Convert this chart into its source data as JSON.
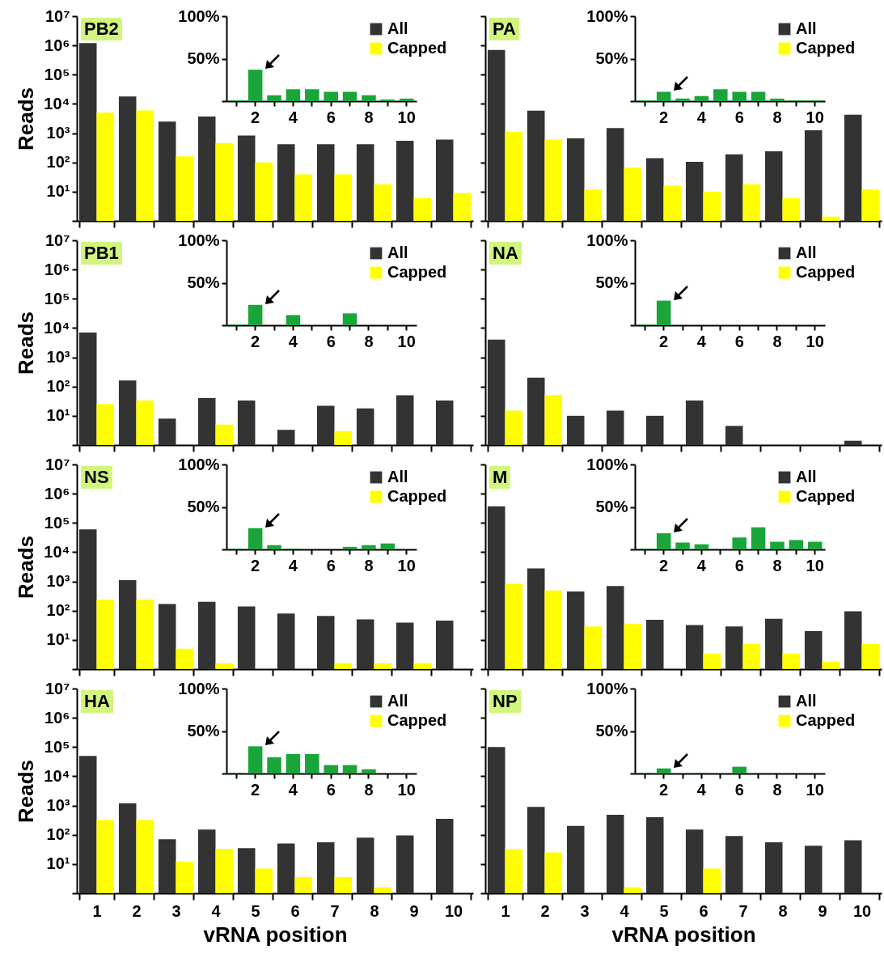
{
  "chart_data": [
    {
      "type": "bar",
      "title": "PB2",
      "ylabel": "Reads",
      "categories": [
        "1",
        "2",
        "3",
        "4",
        "5",
        "6",
        "7",
        "8",
        "9",
        "10"
      ],
      "log": true,
      "ylim": [
        1,
        10000000
      ],
      "yticks": [
        {
          "value": 1,
          "label": null
        },
        {
          "value": 10,
          "label": "10¹"
        },
        {
          "value": 100,
          "label": "10²"
        },
        {
          "value": 1000,
          "label": "10³"
        },
        {
          "value": 10000,
          "label": "10⁴"
        },
        {
          "value": 100000,
          "label": "10⁵"
        },
        {
          "value": 1000000,
          "label": "10⁶"
        },
        {
          "value": 10000000,
          "label": "10⁷"
        }
      ],
      "legend": "top right",
      "tick_labels": "y",
      "series": [
        {
          "name": "All",
          "color": "#333333",
          "values": [
            1200000,
            18000,
            2500,
            3700,
            830,
            420,
            420,
            420,
            550,
            600
          ]
        },
        {
          "name": "Capped",
          "color": "#ffff00",
          "values": [
            5000,
            6000,
            160,
            460,
            100,
            39,
            39,
            18,
            6,
            9
          ]
        }
      ]
    },
    {
      "type": "bar",
      "categories": [
        null,
        "2",
        null,
        "4",
        null,
        "6",
        null,
        "8",
        null,
        "10"
      ],
      "ylim": [
        0,
        100
      ],
      "yticks": [
        {
          "value": 0,
          "label": null
        },
        {
          "value": 50,
          "label": "50%"
        },
        {
          "value": 100,
          "label": "100%"
        }
      ],
      "series": [
        {
          "color": "#1aa53a",
          "values": [
            1,
            37,
            7,
            14,
            14,
            11,
            11,
            7,
            2,
            3
          ]
        }
      ]
    },
    {
      "type": "bar",
      "title": "PA",
      "categories": [
        "1",
        "2",
        "3",
        "4",
        "5",
        "6",
        "7",
        "8",
        "9",
        "10"
      ],
      "log": true,
      "ylim": [
        1,
        10000000
      ],
      "yticks": [
        {
          "value": 1,
          "label": null
        },
        {
          "value": 10,
          "label": null
        },
        {
          "value": 100,
          "label": null
        },
        {
          "value": 1000,
          "label": null
        },
        {
          "value": 10000,
          "label": null
        },
        {
          "value": 100000,
          "label": null
        },
        {
          "value": 1000000,
          "label": null
        },
        {
          "value": 10000000,
          "label": null
        }
      ],
      "legend": "top right",
      "tick_labels": false,
      "series": [
        {
          "name": "All",
          "color": "#333333",
          "values": [
            700000,
            5900,
            660,
            1500,
            140,
            105,
            190,
            240,
            1250,
            4300
          ]
        },
        {
          "name": "Capped",
          "color": "#ffff00",
          "values": [
            1100,
            600,
            12,
            67,
            16,
            10,
            18,
            6,
            1.4,
            12
          ]
        }
      ]
    },
    {
      "type": "bar",
      "categories": [
        null,
        "2",
        null,
        "4",
        null,
        "6",
        null,
        "8",
        null,
        "10"
      ],
      "ylim": [
        0,
        100
      ],
      "yticks": [
        {
          "value": 0,
          "label": null
        },
        {
          "value": 50,
          "label": "50%"
        },
        {
          "value": 100,
          "label": "100%"
        }
      ],
      "series": [
        {
          "color": "#1aa53a",
          "values": [
            1,
            11,
            3,
            6,
            14,
            11,
            11,
            3,
            1,
            1
          ]
        }
      ]
    },
    {
      "type": "bar",
      "title": "PB1",
      "ylabel": "Reads",
      "categories": [
        "1",
        "2",
        "3",
        "4",
        "5",
        "6",
        "7",
        "8",
        "9",
        "10"
      ],
      "log": true,
      "ylim": [
        1,
        10000000
      ],
      "yticks": [
        {
          "value": 1,
          "label": null
        },
        {
          "value": 10,
          "label": "10¹"
        },
        {
          "value": 100,
          "label": "10²"
        },
        {
          "value": 1000,
          "label": "10³"
        },
        {
          "value": 10000,
          "label": "10⁴"
        },
        {
          "value": 100000,
          "label": "10⁵"
        },
        {
          "value": 1000000,
          "label": "10⁶"
        },
        {
          "value": 10000000,
          "label": "10⁷"
        }
      ],
      "legend": "top right",
      "tick_labels": "y",
      "series": [
        {
          "name": "All",
          "color": "#333333",
          "values": [
            7000,
            160,
            8,
            40,
            33,
            3.3,
            22,
            18,
            50,
            33
          ]
        },
        {
          "name": "Capped",
          "color": "#ffff00",
          "values": [
            25,
            33,
            null,
            5,
            null,
            null,
            3,
            null,
            null,
            null
          ]
        }
      ]
    },
    {
      "type": "bar",
      "categories": [
        null,
        "2",
        null,
        "4",
        null,
        "6",
        null,
        "8",
        null,
        "10"
      ],
      "ylim": [
        0,
        100
      ],
      "yticks": [
        {
          "value": 0,
          "label": null
        },
        {
          "value": 50,
          "label": "50%"
        },
        {
          "value": 100,
          "label": "100%"
        }
      ],
      "series": [
        {
          "color": "#1aa53a",
          "values": [
            1,
            24,
            0,
            12,
            0,
            0,
            14,
            0,
            0,
            0
          ]
        }
      ]
    },
    {
      "type": "bar",
      "title": "NA",
      "categories": [
        "1",
        "2",
        "3",
        "4",
        "5",
        "6",
        "7",
        "8",
        "9",
        "10"
      ],
      "log": true,
      "ylim": [
        1,
        10000000
      ],
      "yticks": [
        {
          "value": 1,
          "label": null
        },
        {
          "value": 10,
          "label": null
        },
        {
          "value": 100,
          "label": null
        },
        {
          "value": 1000,
          "label": null
        },
        {
          "value": 10000,
          "label": null
        },
        {
          "value": 100000,
          "label": null
        },
        {
          "value": 1000000,
          "label": null
        },
        {
          "value": 10000000,
          "label": null
        }
      ],
      "legend": "top right",
      "tick_labels": false,
      "series": [
        {
          "name": "All",
          "color": "#333333",
          "values": [
            4000,
            200,
            10,
            15,
            10,
            33,
            4.5,
            null,
            null,
            1.4
          ]
        },
        {
          "name": "Capped",
          "color": "#ffff00",
          "values": [
            15,
            52,
            null,
            null,
            null,
            null,
            null,
            null,
            null,
            null
          ]
        }
      ]
    },
    {
      "type": "bar",
      "categories": [
        null,
        "2",
        null,
        "4",
        null,
        "6",
        null,
        "8",
        null,
        "10"
      ],
      "ylim": [
        0,
        100
      ],
      "yticks": [
        {
          "value": 0,
          "label": null
        },
        {
          "value": 50,
          "label": "50%"
        },
        {
          "value": 100,
          "label": "100%"
        }
      ],
      "series": [
        {
          "color": "#1aa53a",
          "values": [
            1,
            29,
            0,
            0,
            0,
            0,
            0,
            0,
            0,
            0
          ]
        }
      ]
    },
    {
      "type": "bar",
      "title": "NS",
      "ylabel": "Reads",
      "categories": [
        "1",
        "2",
        "3",
        "4",
        "5",
        "6",
        "7",
        "8",
        "9",
        "10"
      ],
      "log": true,
      "ylim": [
        1,
        10000000
      ],
      "yticks": [
        {
          "value": 1,
          "label": null
        },
        {
          "value": 10,
          "label": "10¹"
        },
        {
          "value": 100,
          "label": "10²"
        },
        {
          "value": 1000,
          "label": "10³"
        },
        {
          "value": 10000,
          "label": "10⁴"
        },
        {
          "value": 100000,
          "label": "10⁵"
        },
        {
          "value": 1000000,
          "label": "10⁶"
        },
        {
          "value": 10000000,
          "label": "10⁷"
        }
      ],
      "legend": "top right",
      "tick_labels": "y",
      "series": [
        {
          "name": "All",
          "color": "#333333",
          "values": [
            60000,
            1100,
            170,
            200,
            140,
            80,
            66,
            50,
            39,
            46
          ]
        },
        {
          "name": "Capped",
          "color": "#ffff00",
          "values": [
            240,
            240,
            5,
            1.6,
            null,
            null,
            1.6,
            1.6,
            1.6,
            null
          ]
        }
      ]
    },
    {
      "type": "bar",
      "categories": [
        null,
        "2",
        null,
        "4",
        null,
        "6",
        null,
        "8",
        null,
        "10"
      ],
      "ylim": [
        0,
        100
      ],
      "yticks": [
        {
          "value": 0,
          "label": null
        },
        {
          "value": 50,
          "label": "50%"
        },
        {
          "value": 100,
          "label": "100%"
        }
      ],
      "series": [
        {
          "color": "#1aa53a",
          "values": [
            1,
            25,
            5,
            1,
            0,
            0,
            3,
            5,
            7,
            0
          ]
        }
      ]
    },
    {
      "type": "bar",
      "title": "M",
      "categories": [
        "1",
        "2",
        "3",
        "4",
        "5",
        "6",
        "7",
        "8",
        "9",
        "10"
      ],
      "log": true,
      "ylim": [
        1,
        10000000
      ],
      "yticks": [
        {
          "value": 1,
          "label": null
        },
        {
          "value": 10,
          "label": null
        },
        {
          "value": 100,
          "label": null
        },
        {
          "value": 1000,
          "label": null
        },
        {
          "value": 10000,
          "label": null
        },
        {
          "value": 100000,
          "label": null
        },
        {
          "value": 1000000,
          "label": null
        },
        {
          "value": 10000000,
          "label": null
        }
      ],
      "legend": "top right",
      "tick_labels": false,
      "series": [
        {
          "name": "All",
          "color": "#333333",
          "values": [
            370000,
            2800,
            450,
            700,
            49,
            32,
            29,
            53,
            20,
            95
          ]
        },
        {
          "name": "Capped",
          "color": "#ffff00",
          "values": [
            830,
            490,
            29,
            35,
            null,
            3.4,
            7.3,
            3.4,
            1.8,
            7.3
          ]
        }
      ]
    },
    {
      "type": "bar",
      "categories": [
        null,
        "2",
        null,
        "4",
        null,
        "6",
        null,
        "8",
        null,
        "10"
      ],
      "ylim": [
        0,
        100
      ],
      "yticks": [
        {
          "value": 0,
          "label": null
        },
        {
          "value": 50,
          "label": "50%"
        },
        {
          "value": 100,
          "label": "100%"
        }
      ],
      "series": [
        {
          "color": "#1aa53a",
          "values": [
            1,
            19,
            8,
            6,
            0,
            14,
            26,
            9,
            11,
            9
          ]
        }
      ]
    },
    {
      "type": "bar",
      "title": "HA",
      "ylabel": "Reads",
      "xlabel": "vRNA position",
      "categories": [
        "1",
        "2",
        "3",
        "4",
        "5",
        "6",
        "7",
        "8",
        "9",
        "10"
      ],
      "log": true,
      "ylim": [
        1,
        10000000
      ],
      "yticks": [
        {
          "value": 1,
          "label": null
        },
        {
          "value": 10,
          "label": "10¹"
        },
        {
          "value": 100,
          "label": "10²"
        },
        {
          "value": 1000,
          "label": "10³"
        },
        {
          "value": 10000,
          "label": "10⁴"
        },
        {
          "value": 100000,
          "label": "10⁵"
        },
        {
          "value": 1000000,
          "label": "10⁶"
        },
        {
          "value": 10000000,
          "label": "10⁷"
        }
      ],
      "legend": "top right",
      "series": [
        {
          "name": "All",
          "color": "#333333",
          "values": [
            50000,
            1200,
            70,
            150,
            35,
            50,
            55,
            80,
            95,
            350
          ]
        },
        {
          "name": "Capped",
          "color": "#ffff00",
          "values": [
            320,
            320,
            12,
            33,
            7,
            3.6,
            3.6,
            1.6,
            null,
            null
          ]
        }
      ]
    },
    {
      "type": "bar",
      "categories": [
        null,
        "2",
        null,
        "4",
        null,
        "6",
        null,
        "8",
        null,
        "10"
      ],
      "ylim": [
        0,
        100
      ],
      "yticks": [
        {
          "value": 0,
          "label": null
        },
        {
          "value": 50,
          "label": "50%"
        },
        {
          "value": 100,
          "label": "100%"
        }
      ],
      "series": [
        {
          "color": "#1aa53a",
          "values": [
            1,
            32,
            19,
            23,
            23,
            10,
            10,
            5,
            0,
            0
          ]
        }
      ]
    },
    {
      "type": "bar",
      "title": "NP",
      "xlabel": "vRNA position",
      "categories": [
        "1",
        "2",
        "3",
        "4",
        "5",
        "6",
        "7",
        "8",
        "9",
        "10"
      ],
      "log": true,
      "ylim": [
        1,
        10000000
      ],
      "yticks": [
        {
          "value": 1,
          "label": null
        },
        {
          "value": 10,
          "label": null
        },
        {
          "value": 100,
          "label": null
        },
        {
          "value": 1000,
          "label": null
        },
        {
          "value": 10000,
          "label": null
        },
        {
          "value": 100000,
          "label": null
        },
        {
          "value": 1000000,
          "label": null
        },
        {
          "value": 10000000,
          "label": null
        }
      ],
      "legend": "top right",
      "tick_labels": "x",
      "series": [
        {
          "name": "All",
          "color": "#333333",
          "values": [
            100000,
            900,
            200,
            480,
            400,
            150,
            90,
            55,
            42,
            65
          ]
        },
        {
          "name": "Capped",
          "color": "#ffff00",
          "values": [
            32,
            25,
            null,
            1.6,
            null,
            7,
            null,
            null,
            null,
            null
          ]
        }
      ]
    },
    {
      "type": "bar",
      "categories": [
        null,
        "2",
        null,
        "4",
        null,
        "6",
        null,
        "8",
        null,
        "10"
      ],
      "ylim": [
        0,
        100
      ],
      "yticks": [
        {
          "value": 0,
          "label": null
        },
        {
          "value": 50,
          "label": "50%"
        },
        {
          "value": 100,
          "label": "100%"
        }
      ],
      "series": [
        {
          "color": "#1aa53a",
          "values": [
            1,
            6,
            0,
            1,
            0,
            8,
            0,
            0,
            0,
            0
          ]
        }
      ]
    }
  ]
}
